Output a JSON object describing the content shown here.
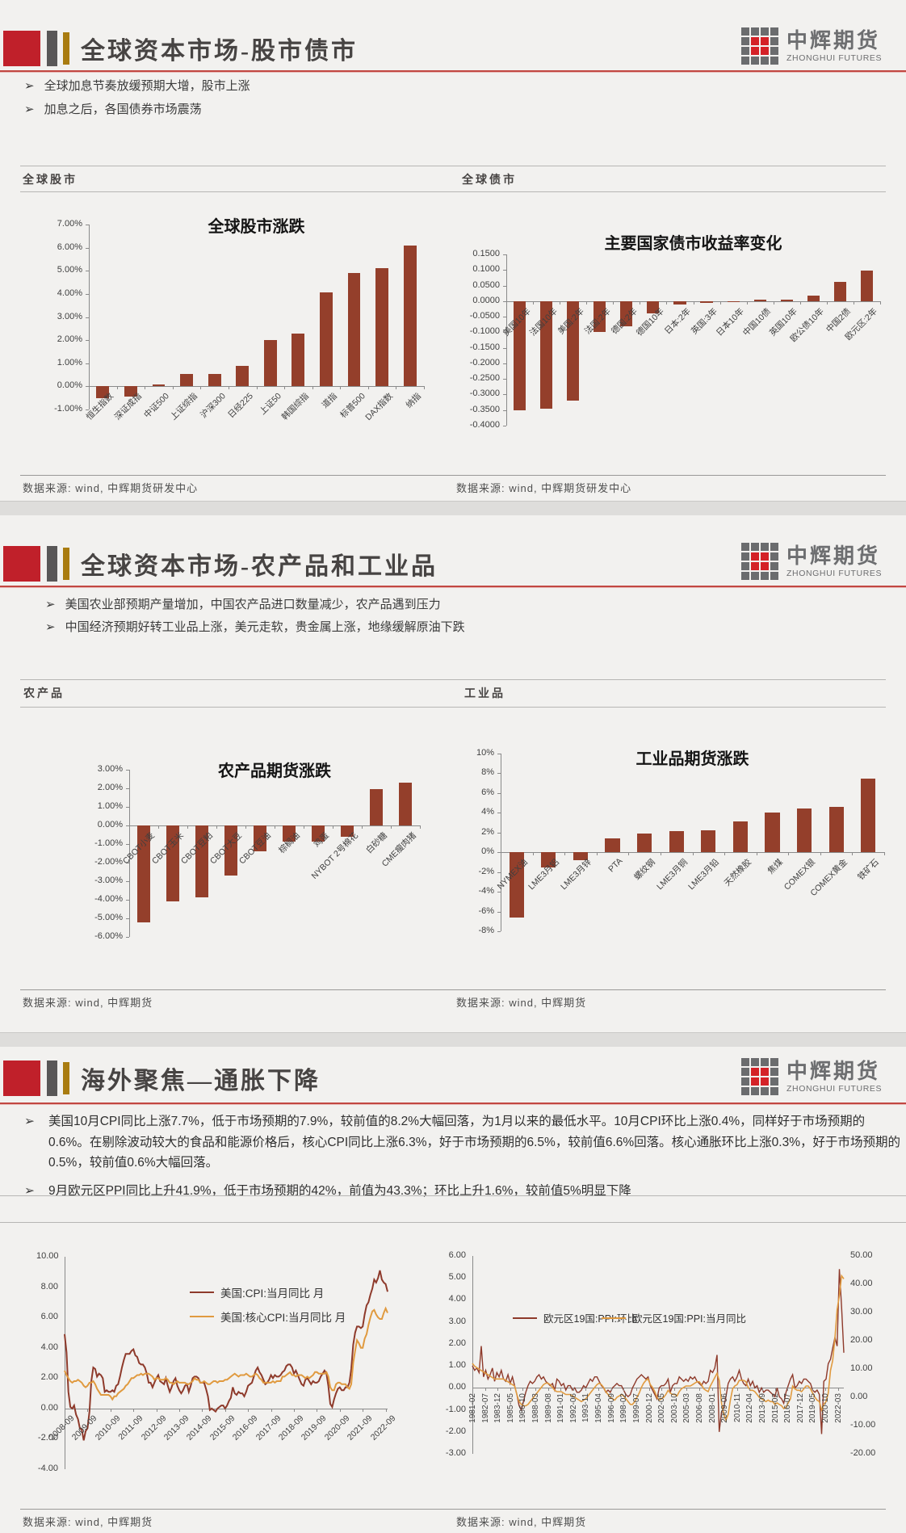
{
  "ui": {
    "bullet_char": "➢",
    "colors": {
      "accent_red": "#c0202a",
      "bar": "#943f2b",
      "line_dark_red": "#8e3a2b",
      "line_orange": "#e09a3f",
      "gold": "#a97c10",
      "dark_gray": "#595757"
    }
  },
  "brand": {
    "name": "中辉期货",
    "subtitle": "ZHONGHUI FUTURES"
  },
  "slides": [
    {
      "title": "全球资本市场-股市债市",
      "bullets": [
        "全球加息节奏放缓预期大增，股市上涨",
        "加息之后，各国债券市场震荡"
      ],
      "left_panel_label": "全球股市",
      "right_panel_label": "全球债市",
      "left_source": "数据来源: wind, 中辉期货研发中心",
      "right_source": "数据来源: wind, 中辉期货研发中心"
    },
    {
      "title": "全球资本市场-农产品和工业品",
      "bullets": [
        "美国农业部预期产量增加，中国农产品进口数量减少，农产品遇到压力",
        "中国经济预期好转工业品上涨，美元走软，贵金属上涨，地缘缓解原油下跌"
      ],
      "left_panel_label": "农产品",
      "right_panel_label": "工业品",
      "left_source": "数据来源: wind, 中辉期货",
      "right_source": "数据来源: wind, 中辉期货"
    },
    {
      "title": "海外聚焦—通胀下降",
      "bullets": [
        "美国10月CPI同比上涨7.7%，低于市场预期的7.9%，较前值的8.2%大幅回落，为1月以来的最低水平。10月CPI环比上涨0.4%，同样好于市场预期的0.6%。在剔除波动较大的食品和能源价格后，核心CPI同比上涨6.3%，好于市场预期的6.5%，较前值6.6%回落。核心通胀环比上涨0.3%，好于市场预期的0.5%，较前值0.6%大幅回落。",
        "9月欧元区PPI同比上升41.9%，低于市场预期的42%，前值为43.3%；环比上升1.6%，较前值5%明显下降"
      ],
      "left_source": "数据来源: wind, 中辉期货",
      "right_source": "数据来源: wind, 中辉期货"
    }
  ],
  "chart_data": [
    {
      "type": "bar",
      "title": "全球股市涨跌",
      "categories": [
        "恒生指数",
        "深证成指",
        "中证500",
        "上证综指",
        "沪深300",
        "日经225",
        "上证50",
        "韩国综指",
        "道指",
        "标普500",
        "DAX指数",
        "纳指"
      ],
      "values": [
        -0.5,
        -0.45,
        0.07,
        0.53,
        0.55,
        0.9,
        2.0,
        2.3,
        4.05,
        4.9,
        5.1,
        6.1
      ],
      "y_ticks": [
        7,
        6,
        5,
        4,
        3,
        2,
        1,
        0,
        -1
      ],
      "ylim": [
        7,
        -1
      ],
      "tick_format": "pct2",
      "grid": false
    },
    {
      "type": "bar",
      "title": "主要国家债市收益率变化",
      "categories": [
        "美国10年",
        "法国10年",
        "美国:2年",
        "法国:2年",
        "德国:2年",
        "德国10年",
        "日本:2年",
        "英国:3年",
        "日本10年",
        "中国10债",
        "英国10年",
        "欧公债10年",
        "中国2债",
        "欧元区:2年"
      ],
      "values": [
        -0.35,
        -0.345,
        -0.32,
        -0.1,
        -0.08,
        -0.04,
        -0.012,
        -0.006,
        -0.003,
        0.004,
        0.006,
        0.018,
        0.062,
        0.098
      ],
      "y_ticks": [
        0.15,
        0.1,
        0.05,
        0,
        -0.05,
        -0.1,
        -0.15,
        -0.2,
        -0.25,
        -0.3,
        -0.35,
        -0.4
      ],
      "ylim": [
        0.15,
        -0.4
      ],
      "tick_format": "dec4",
      "grid": false
    },
    {
      "type": "bar",
      "title": "农产品期货涨跌",
      "categories": [
        "CBOT小麦",
        "CBOT玉米",
        "CBOT豆粕",
        "CBOT大豆",
        "CBOT豆油",
        "棕榈油",
        "鸡蛋",
        "NYBOT 2号棉花",
        "白砂糖",
        "CME瘦肉猪"
      ],
      "values": [
        -5.2,
        -4.1,
        -3.85,
        -2.7,
        -1.4,
        -0.85,
        -0.85,
        -0.6,
        1.95,
        2.3
      ],
      "y_ticks": [
        3,
        2,
        1,
        0,
        -1,
        -2,
        -3,
        -4,
        -5,
        -6
      ],
      "ylim": [
        3,
        -6
      ],
      "tick_format": "pct2",
      "grid": false
    },
    {
      "type": "bar",
      "title": "工业品期货涨跌",
      "categories": [
        "NYMEX油",
        "LME3月铝",
        "LME3月锌",
        "PTA",
        "螺纹钢",
        "LME3月铜",
        "LME3月铅",
        "天然橡胶",
        "焦煤",
        "COMEX银",
        "COMEX黄金",
        "铁矿石"
      ],
      "values": [
        -6.6,
        -1.5,
        -0.8,
        1.4,
        1.9,
        2.15,
        2.2,
        3.1,
        4.0,
        4.4,
        4.6,
        7.5
      ],
      "y_ticks": [
        10,
        8,
        6,
        4,
        2,
        0,
        -2,
        -4,
        -6,
        -8
      ],
      "ylim": [
        10,
        -8
      ],
      "tick_format": "pct0",
      "grid": false
    },
    {
      "type": "line",
      "title": "",
      "x_tick_labels": [
        "2008-09",
        "2009-09",
        "2010-09",
        "2011-09",
        "2012-09",
        "2013-09",
        "2014-09",
        "2015-09",
        "2016-09",
        "2017-09",
        "2018-09",
        "2019-09",
        "2020-09",
        "2021-09",
        "2022-09"
      ],
      "x_tick_interval": 12,
      "x_total": 169,
      "x_point_step": 1,
      "x_label_rotation": -45,
      "left_ticks": [
        10,
        8,
        6,
        4,
        2,
        0,
        -2,
        -4
      ],
      "ylim": [
        10,
        -4
      ],
      "tick_format": "dec2",
      "legend_position": "inside-left",
      "series": [
        {
          "name": "美国:CPI:当月同比 月",
          "color": "#8e3a2b",
          "axis": "left",
          "width": 2,
          "values": [
            4.9,
            3.7,
            1.1,
            0.1,
            0.0,
            0.2,
            -0.4,
            -0.7,
            -1.3,
            -1.4,
            -2.1,
            -1.5,
            -1.3,
            -0.2,
            1.8,
            2.7,
            2.6,
            2.1,
            2.3,
            2.2,
            2.0,
            1.1,
            1.2,
            1.1,
            1.1,
            1.2,
            1.1,
            1.5,
            1.6,
            2.1,
            2.7,
            3.2,
            3.6,
            3.6,
            3.6,
            3.8,
            3.9,
            3.5,
            3.4,
            3.0,
            2.9,
            2.9,
            2.7,
            2.3,
            1.7,
            1.7,
            1.4,
            1.7,
            2.0,
            2.2,
            1.8,
            1.7,
            1.6,
            2.0,
            1.5,
            1.1,
            1.4,
            1.8,
            2.0,
            1.5,
            1.2,
            1.0,
            1.2,
            1.5,
            1.6,
            1.1,
            1.5,
            2.0,
            2.1,
            2.1,
            2.0,
            1.7,
            1.7,
            1.7,
            1.3,
            0.8,
            -0.1,
            0.0,
            -0.1,
            -0.2,
            0.0,
            0.1,
            0.2,
            0.2,
            0.0,
            0.2,
            0.5,
            0.7,
            1.4,
            1.0,
            0.9,
            1.1,
            1.0,
            1.0,
            0.8,
            1.1,
            1.5,
            1.6,
            1.7,
            2.1,
            2.5,
            2.7,
            2.4,
            2.2,
            1.9,
            1.6,
            1.7,
            1.9,
            2.2,
            2.0,
            2.2,
            2.1,
            2.1,
            2.2,
            2.4,
            2.5,
            2.8,
            2.9,
            2.9,
            2.7,
            2.3,
            2.5,
            2.2,
            1.9,
            1.6,
            1.5,
            1.9,
            2.0,
            1.8,
            1.6,
            1.8,
            1.7,
            1.7,
            1.8,
            2.1,
            2.3,
            2.5,
            2.3,
            1.5,
            0.3,
            0.1,
            0.6,
            1.0,
            1.3,
            1.4,
            1.2,
            1.2,
            1.4,
            1.4,
            1.7,
            2.6,
            4.2,
            5.0,
            5.4,
            5.4,
            5.3,
            5.4,
            6.2,
            6.8,
            7.0,
            7.5,
            7.9,
            8.5,
            8.3,
            8.6,
            9.1,
            8.5,
            8.3,
            8.2,
            7.7
          ]
        },
        {
          "name": "美国:核心CPI:当月同比 月",
          "color": "#e09a3f",
          "axis": "left",
          "width": 2,
          "values": [
            2.5,
            2.2,
            2.0,
            1.8,
            1.7,
            1.8,
            1.8,
            1.9,
            1.8,
            1.7,
            1.5,
            1.4,
            1.5,
            1.7,
            1.7,
            1.8,
            1.6,
            1.3,
            1.1,
            0.9,
            0.9,
            0.9,
            0.9,
            0.9,
            0.8,
            0.6,
            0.8,
            0.8,
            1.0,
            1.1,
            1.2,
            1.3,
            1.5,
            1.6,
            1.8,
            2.0,
            2.0,
            2.1,
            2.2,
            2.2,
            2.3,
            2.2,
            2.3,
            2.3,
            2.3,
            2.2,
            2.1,
            1.9,
            2.0,
            2.0,
            1.9,
            1.9,
            1.9,
            2.0,
            1.9,
            1.7,
            1.7,
            1.6,
            1.7,
            1.8,
            1.7,
            1.7,
            1.7,
            1.7,
            1.6,
            1.6,
            1.7,
            1.8,
            2.0,
            1.9,
            1.9,
            1.7,
            1.7,
            1.8,
            1.7,
            1.6,
            1.6,
            1.7,
            1.8,
            1.8,
            1.7,
            1.8,
            1.8,
            1.8,
            1.9,
            1.9,
            2.0,
            2.1,
            2.2,
            2.3,
            2.2,
            2.1,
            2.2,
            2.2,
            2.2,
            2.3,
            2.2,
            2.1,
            2.1,
            2.2,
            2.3,
            2.2,
            2.0,
            1.9,
            1.7,
            1.7,
            1.7,
            1.7,
            1.7,
            1.8,
            1.7,
            1.8,
            1.8,
            1.8,
            2.1,
            2.1,
            2.2,
            2.3,
            2.4,
            2.2,
            2.2,
            2.1,
            2.2,
            2.2,
            2.2,
            2.1,
            2.0,
            2.1,
            2.0,
            2.1,
            2.2,
            2.4,
            2.4,
            2.3,
            2.3,
            2.3,
            2.3,
            2.4,
            2.1,
            1.4,
            1.2,
            1.2,
            1.6,
            1.7,
            1.7,
            1.6,
            1.6,
            1.6,
            1.4,
            1.3,
            1.6,
            3.0,
            3.8,
            4.5,
            4.3,
            4.0,
            4.0,
            4.6,
            4.9,
            5.5,
            6.0,
            6.4,
            6.5,
            6.2,
            6.0,
            5.9,
            5.9,
            6.3,
            6.6,
            6.3
          ]
        }
      ]
    },
    {
      "type": "line",
      "title": "",
      "x_tick_labels": [
        "1981-02",
        "1982-07",
        "1983-12",
        "1985-05",
        "1986-10",
        "1988-03",
        "1989-08",
        "1991-01",
        "1992-06",
        "1993-11",
        "1995-04",
        "1996-09",
        "1998-02",
        "1999-07",
        "2000-12",
        "2002-05",
        "2003-10",
        "2005-03",
        "2006-08",
        "2008-01",
        "2009-06",
        "2010-11",
        "2012-04",
        "2013-09",
        "2015-02",
        "2016-07",
        "2017-12",
        "2019-05",
        "2020-10",
        "2022-03"
      ],
      "x_tick_interval": 17,
      "x_total": 501,
      "x_point_step": 3,
      "x_label_rotation": -90,
      "left_ticks": [
        6,
        5,
        4,
        3,
        2,
        1,
        0,
        -1,
        -2,
        -3
      ],
      "right_ticks": [
        50,
        40,
        30,
        20,
        10,
        0,
        -10,
        -20
      ],
      "ylim_left": [
        6,
        -3
      ],
      "ylim_right": [
        50,
        -20
      ],
      "tick_format": "dec2",
      "legend_position": "inside-top",
      "series": [
        {
          "name": "欧元区19国:PPI:环比",
          "color": "#8e3a2b",
          "axis": "left",
          "width": 1.4,
          "values": [
            1.0,
            0.8,
            0.9,
            0.7,
            1.9,
            0.5,
            0.8,
            0.4,
            0.6,
            0.9,
            0.3,
            0.7,
            0.5,
            0.8,
            0.4,
            0.3,
            0.6,
            0.2,
            0.5,
            0.1,
            -0.3,
            -0.8,
            -1.0,
            -0.6,
            -0.2,
            0.1,
            0.3,
            0.2,
            0.3,
            0.5,
            0.6,
            0.4,
            0.5,
            0.3,
            0.2,
            0.1,
            0.2,
            -0.1,
            0.4,
            0.3,
            0.1,
            0.2,
            -0.1,
            0.1,
            0.1,
            -0.1,
            0.0,
            -0.2,
            -0.2,
            -0.1,
            0.1,
            0.0,
            0.2,
            0.4,
            0.3,
            0.5,
            0.5,
            0.3,
            0.1,
            0.0,
            -0.2,
            -0.1,
            -0.2,
            0.0,
            0.1,
            0.2,
            0.1,
            0.1,
            -0.1,
            -0.3,
            -0.4,
            -0.3,
            0.0,
            0.2,
            0.4,
            0.5,
            0.6,
            0.5,
            0.4,
            0.5,
            0.1,
            -0.1,
            -0.3,
            -0.5,
            0.0,
            0.1,
            0.1,
            0.2,
            0.4,
            -0.2,
            0.1,
            0.2,
            0.2,
            0.5,
            0.4,
            0.3,
            0.4,
            0.3,
            0.5,
            0.4,
            0.5,
            0.3,
            0.2,
            0.1,
            0.3,
            0.2,
            0.3,
            0.8,
            0.7,
            0.9,
            1.5,
            -2.0,
            -1.1,
            -0.9,
            -0.4,
            0.2,
            0.4,
            0.5,
            0.3,
            0.5,
            0.8,
            0.4,
            0.2,
            0.1,
            0.4,
            0.1,
            0.3,
            0.0,
            0.1,
            -0.2,
            0.0,
            -0.2,
            -0.1,
            -0.1,
            -0.2,
            -0.3,
            -0.4,
            0.0,
            -0.4,
            -0.5,
            -0.7,
            -0.2,
            0.1,
            0.4,
            0.6,
            0.0,
            0.1,
            0.3,
            0.2,
            0.4,
            0.4,
            0.3,
            0.2,
            -0.1,
            -0.2,
            -0.1,
            -0.3,
            -2.1,
            0.3,
            0.4,
            1.1,
            1.3,
            1.8,
            2.3,
            1.9,
            5.4,
            3.7,
            1.6
          ]
        },
        {
          "name": "欧元区19国:PPI:当月同比",
          "color": "#e09a3f",
          "axis": "right",
          "width": 1.6,
          "values": [
            12,
            11,
            10.5,
            10,
            9.5,
            9,
            8.5,
            8,
            7.5,
            7,
            6.5,
            6.5,
            6.5,
            6.5,
            6.5,
            6,
            5.5,
            5,
            4.5,
            4,
            1,
            -1.5,
            -2.5,
            -3,
            -3,
            -2.5,
            -1.5,
            -0.5,
            0.5,
            1.5,
            2.5,
            3.5,
            4.5,
            5,
            5,
            4.5,
            3.5,
            2.5,
            2,
            2,
            2,
            1.5,
            1,
            1,
            1,
            0.5,
            0,
            -0.5,
            -1,
            -1.5,
            -1,
            -0.5,
            0.5,
            1.5,
            2.5,
            3.5,
            4.5,
            5,
            4.5,
            3.5,
            2,
            1,
            0,
            -0.5,
            -1,
            0,
            0.5,
            1,
            0.5,
            -0.5,
            -1.5,
            -2.5,
            -2.5,
            -1.5,
            0,
            1.5,
            3.5,
            5,
            6,
            6.5,
            4.5,
            3.5,
            2,
            0,
            -1,
            -0.5,
            0,
            1,
            2.5,
            1.5,
            1,
            1,
            0.5,
            2,
            3,
            3.5,
            4,
            4,
            4,
            4.5,
            5,
            5.5,
            5.5,
            4.5,
            3,
            2.5,
            2,
            4,
            5.5,
            7,
            8.5,
            6,
            -2,
            -6,
            -8,
            -6,
            -1,
            3,
            4,
            4.5,
            6,
            6,
            6,
            5.5,
            3.5,
            2.5,
            2.5,
            2,
            1,
            0,
            -0.5,
            -1,
            -1.5,
            -1,
            -1.5,
            -1.5,
            -2.5,
            -2,
            -2.5,
            -3,
            -4,
            -3.5,
            -2,
            -0.5,
            4,
            3,
            2.5,
            2.5,
            2,
            3,
            4,
            4,
            3,
            1.5,
            0,
            -1,
            -1.5,
            -4.5,
            -2.5,
            -1.5,
            1.5,
            9.5,
            13,
            21,
            31,
            36,
            43,
            41.9
          ]
        }
      ]
    }
  ]
}
